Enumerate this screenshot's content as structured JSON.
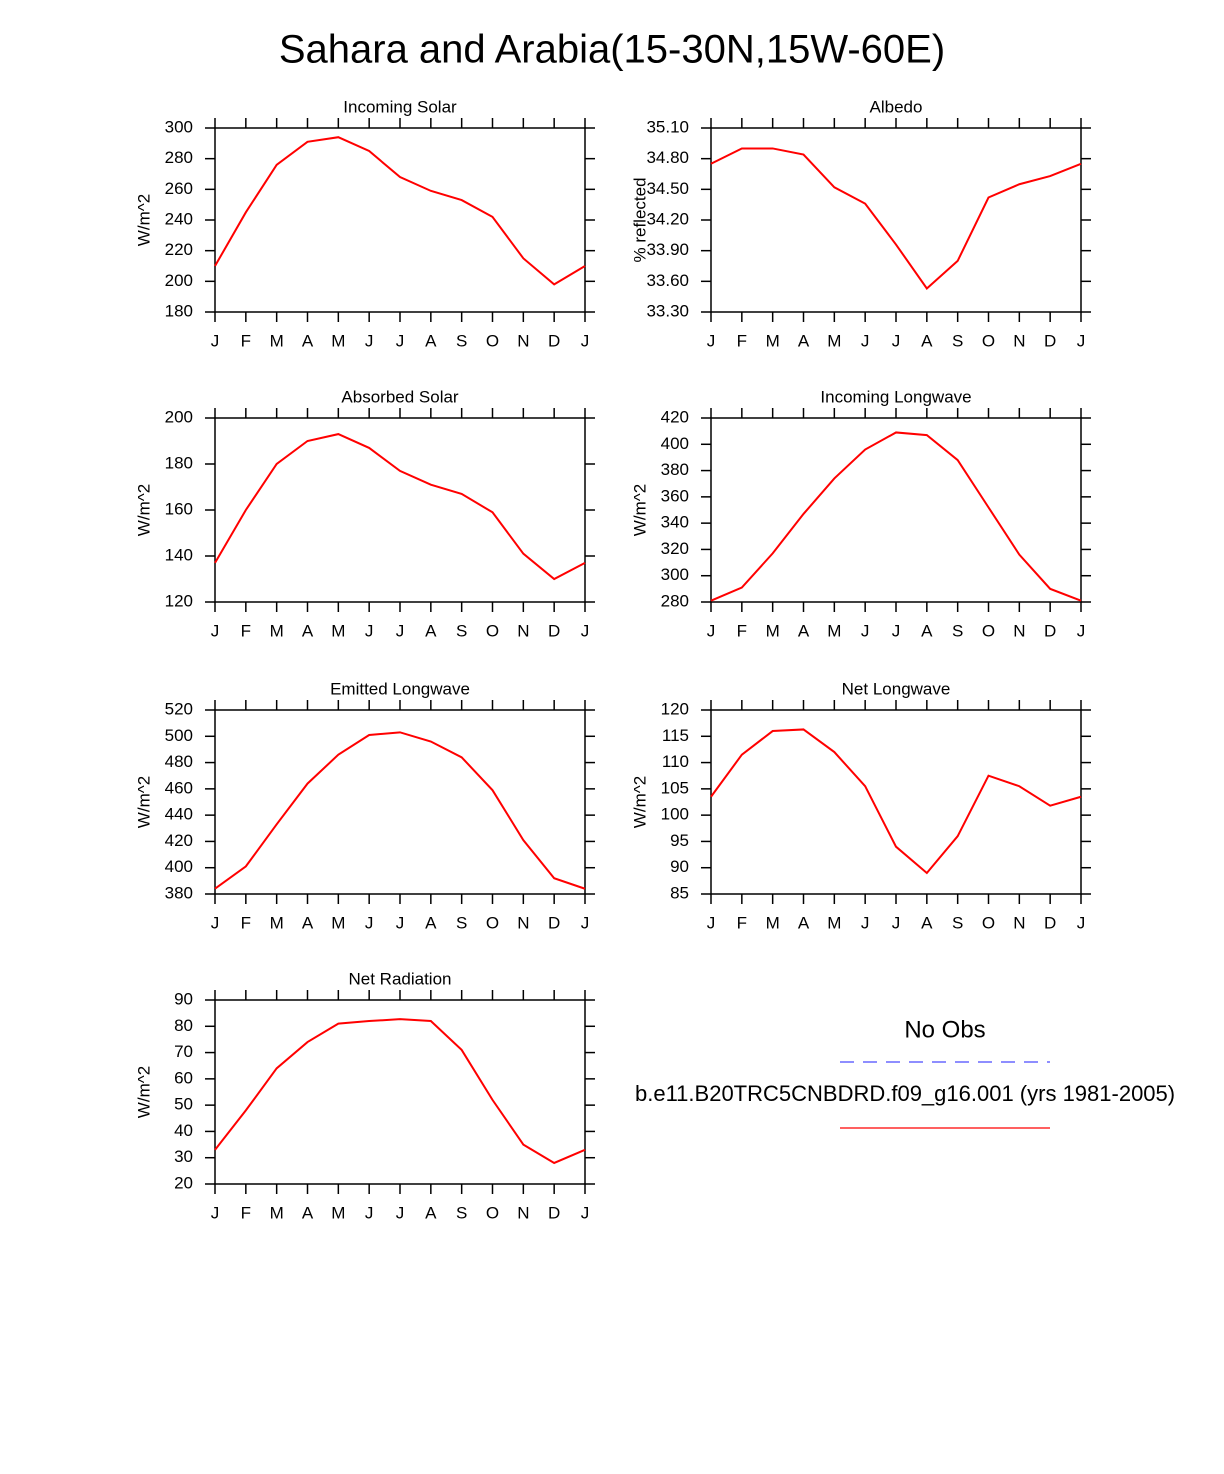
{
  "title": "Sahara and Arabia(15-30N,15W-60E)",
  "legend": [
    {
      "name": "No Obs",
      "color": "#4a4aff",
      "dash": true
    },
    {
      "name": "b.e11.B20TRC5CNBDRD.f09_g16.001 (yrs 1981-2005)",
      "color": "#ff0000",
      "dash": false
    }
  ],
  "chart_data": [
    {
      "type": "line",
      "title": "Incoming Solar",
      "y_label": "W/m^2",
      "categories": [
        "J",
        "F",
        "M",
        "A",
        "M",
        "J",
        "J",
        "A",
        "S",
        "O",
        "N",
        "D",
        "J"
      ],
      "values": [
        210,
        245,
        276,
        291,
        294,
        285,
        268,
        259,
        253,
        242,
        215,
        198,
        210
      ],
      "color": "#ff0000",
      "ylim": [
        180,
        300
      ],
      "yticks": [
        180,
        200,
        220,
        240,
        260,
        280,
        300
      ]
    },
    {
      "type": "line",
      "title": "Albedo",
      "y_label": "% reflected",
      "categories": [
        "J",
        "F",
        "M",
        "A",
        "M",
        "J",
        "J",
        "A",
        "S",
        "O",
        "N",
        "D",
        "J"
      ],
      "values": [
        34.75,
        34.9,
        34.9,
        34.84,
        34.52,
        34.36,
        33.96,
        33.53,
        33.8,
        34.42,
        34.55,
        34.63,
        34.75
      ],
      "color": "#ff0000",
      "ylim": [
        33.3,
        35.1
      ],
      "yticks": [
        {
          "value": 33.3,
          "label": "33.30"
        },
        {
          "value": 33.6,
          "label": "33.60"
        },
        {
          "value": 33.9,
          "label": "33.90"
        },
        {
          "value": 34.2,
          "label": "34.20"
        },
        {
          "value": 34.5,
          "label": "34.50"
        },
        {
          "value": 34.8,
          "label": "34.80"
        },
        {
          "value": 35.1,
          "label": "35.10"
        }
      ]
    },
    {
      "type": "line",
      "title": "Absorbed Solar",
      "y_label": "W/m^2",
      "categories": [
        "J",
        "F",
        "M",
        "A",
        "M",
        "J",
        "J",
        "A",
        "S",
        "O",
        "N",
        "D",
        "J"
      ],
      "values": [
        137,
        160,
        180,
        190,
        193,
        187,
        177,
        171,
        167,
        159,
        141,
        130,
        137
      ],
      "color": "#ff0000",
      "ylim": [
        120,
        200
      ],
      "yticks": [
        120,
        140,
        160,
        180,
        200
      ]
    },
    {
      "type": "line",
      "title": "Incoming Longwave",
      "y_label": "W/m^2",
      "categories": [
        "J",
        "F",
        "M",
        "A",
        "M",
        "J",
        "J",
        "A",
        "S",
        "O",
        "N",
        "D",
        "J"
      ],
      "values": [
        281,
        291,
        317,
        347,
        374,
        396,
        409,
        407,
        388,
        352,
        316,
        290,
        281
      ],
      "color": "#ff0000",
      "ylim": [
        280,
        420
      ],
      "yticks": [
        280,
        300,
        320,
        340,
        360,
        380,
        400,
        420
      ]
    },
    {
      "type": "line",
      "title": "Emitted Longwave",
      "y_label": "W/m^2",
      "categories": [
        "J",
        "F",
        "M",
        "A",
        "M",
        "J",
        "J",
        "A",
        "S",
        "O",
        "N",
        "D",
        "J"
      ],
      "values": [
        384,
        401,
        433,
        464,
        486,
        501,
        503,
        496,
        484,
        459,
        421,
        392,
        384
      ],
      "color": "#ff0000",
      "ylim": [
        380,
        520
      ],
      "yticks": [
        380,
        400,
        420,
        440,
        460,
        480,
        500,
        520
      ]
    },
    {
      "type": "line",
      "title": "Net Longwave",
      "y_label": "W/m^2",
      "categories": [
        "J",
        "F",
        "M",
        "A",
        "M",
        "J",
        "J",
        "A",
        "S",
        "O",
        "N",
        "D",
        "J"
      ],
      "values": [
        103.5,
        111.5,
        116,
        116.3,
        112,
        105.5,
        94,
        89,
        96,
        107.5,
        105.5,
        101.8,
        103.5
      ],
      "color": "#ff0000",
      "ylim": [
        85,
        120
      ],
      "yticks": [
        85,
        90,
        95,
        100,
        105,
        110,
        115,
        120
      ]
    },
    {
      "type": "line",
      "title": "Net Radiation",
      "y_label": "W/m^2",
      "categories": [
        "J",
        "F",
        "M",
        "A",
        "M",
        "J",
        "J",
        "A",
        "S",
        "O",
        "N",
        "D",
        "J"
      ],
      "values": [
        33,
        48,
        64,
        74,
        81,
        82,
        82.7,
        82,
        71,
        52,
        35,
        28,
        33
      ],
      "color": "#ff0000",
      "ylim": [
        20,
        90
      ],
      "yticks": [
        20,
        30,
        40,
        50,
        60,
        70,
        80,
        90
      ]
    }
  ]
}
